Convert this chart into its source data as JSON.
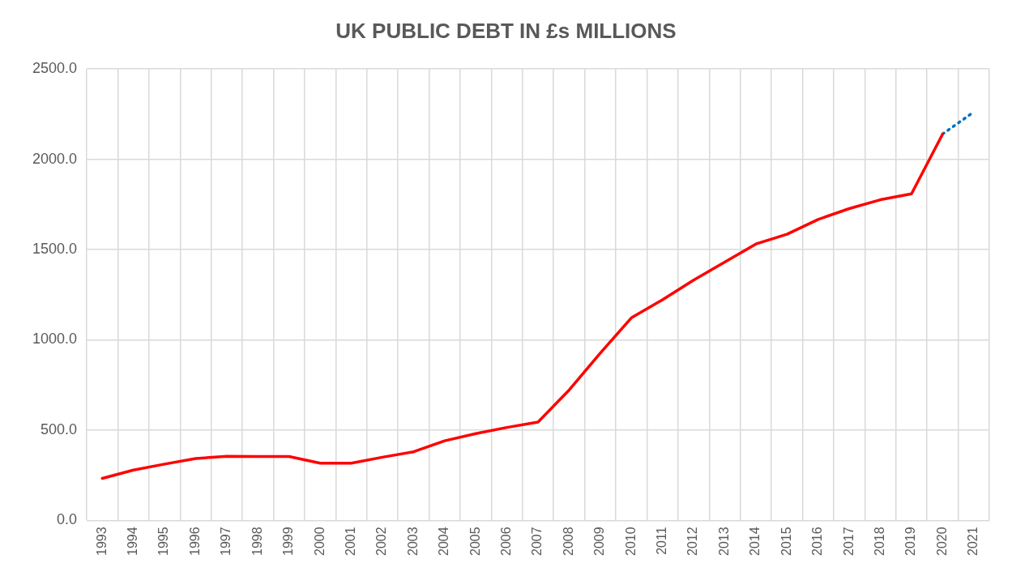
{
  "chart_data": {
    "type": "line",
    "title": "UK PUBLIC DEBT IN £s MILLIONS",
    "categories": [
      "1993",
      "1994",
      "1995",
      "1996",
      "1997",
      "1998",
      "1999",
      "2000",
      "2001",
      "2002",
      "2003",
      "2004",
      "2005",
      "2006",
      "2007",
      "2008",
      "2009",
      "2010",
      "2011",
      "2012",
      "2013",
      "2014",
      "2015",
      "2016",
      "2017",
      "2018",
      "2019",
      "2020",
      "2021"
    ],
    "series": [
      {
        "color": "#ff0000",
        "line_style": "solid",
        "values": [
          233,
          279,
          312,
          343,
          355,
          354,
          354,
          317,
          317,
          350,
          380,
          441,
          481,
          515,
          545,
          722,
          927,
          1122,
          1222,
          1331,
          1431,
          1531,
          1585,
          1667,
          1727,
          1776,
          1809,
          2140,
          null
        ]
      },
      {
        "color": "#0070c0",
        "line_style": "dotted",
        "values": [
          null,
          null,
          null,
          null,
          null,
          null,
          null,
          null,
          null,
          null,
          null,
          null,
          null,
          null,
          null,
          null,
          null,
          null,
          null,
          null,
          null,
          null,
          null,
          null,
          null,
          null,
          null,
          2140,
          2262
        ]
      }
    ],
    "ylim": [
      0,
      2500
    ],
    "yticks": [
      {
        "value": 0,
        "label": "0.0"
      },
      {
        "value": 500,
        "label": "500.0"
      },
      {
        "value": 1000,
        "label": "1000.0"
      },
      {
        "value": 1500,
        "label": "1500.0"
      },
      {
        "value": 2000,
        "label": "2000.0"
      },
      {
        "value": 2500,
        "label": "2500.0"
      }
    ],
    "grid": true,
    "legend": false,
    "marker": "none"
  }
}
